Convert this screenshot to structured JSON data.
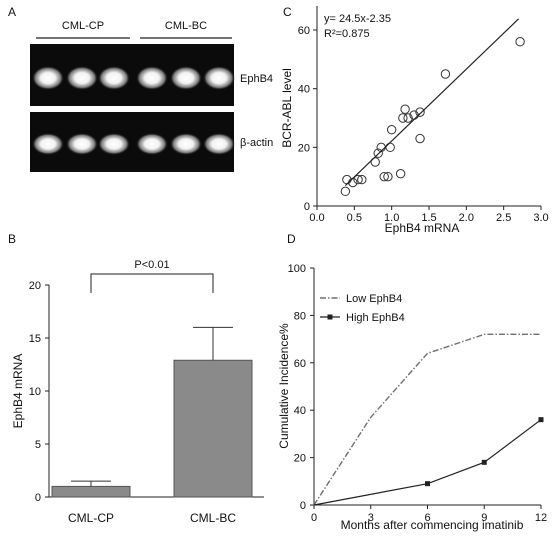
{
  "panels": {
    "A": "A",
    "B": "B",
    "C": "C",
    "D": "D"
  },
  "gel": {
    "groups": [
      "CML-CP",
      "CML-BC"
    ],
    "lanes_per_group": 3,
    "row_labels": [
      "EphB4",
      "β-actin"
    ]
  },
  "chart_data": [
    {
      "panel": "B",
      "type": "bar",
      "title": "",
      "xlabel": "",
      "ylabel": "EphB4 mRNA",
      "categories": [
        "CML-CP",
        "CML-BC"
      ],
      "values": [
        1.0,
        12.9
      ],
      "error": [
        0.5,
        3.1
      ],
      "ylim": [
        0,
        20
      ],
      "yticks": [
        0,
        5,
        10,
        15,
        20
      ],
      "bar_color": "#8a8a8a",
      "annotation": "P<0.01",
      "grid": false
    },
    {
      "panel": "C",
      "type": "scatter",
      "title": "",
      "xlabel": "EphB4 mRNA",
      "ylabel": "BCR-ABL level",
      "xlim": [
        0,
        3.0
      ],
      "ylim": [
        0,
        60
      ],
      "xticks": [
        "0.0",
        "0.5",
        "1.0",
        "1.5",
        "2.0",
        "2.5",
        "3.0"
      ],
      "yticks": [
        0,
        20,
        40,
        60
      ],
      "equation": "y= 24.5x-2.35",
      "r2": "R²=0.875",
      "points": [
        {
          "x": 0.38,
          "y": 5
        },
        {
          "x": 0.4,
          "y": 9
        },
        {
          "x": 0.48,
          "y": 8
        },
        {
          "x": 0.55,
          "y": 9
        },
        {
          "x": 0.6,
          "y": 9
        },
        {
          "x": 0.78,
          "y": 15
        },
        {
          "x": 0.82,
          "y": 18
        },
        {
          "x": 0.86,
          "y": 20
        },
        {
          "x": 0.9,
          "y": 10
        },
        {
          "x": 0.95,
          "y": 10
        },
        {
          "x": 0.98,
          "y": 20
        },
        {
          "x": 1.0,
          "y": 26
        },
        {
          "x": 1.12,
          "y": 11
        },
        {
          "x": 1.15,
          "y": 30
        },
        {
          "x": 1.18,
          "y": 33
        },
        {
          "x": 1.22,
          "y": 30
        },
        {
          "x": 1.3,
          "y": 31
        },
        {
          "x": 1.38,
          "y": 23
        },
        {
          "x": 1.38,
          "y": 32
        },
        {
          "x": 1.72,
          "y": 45
        },
        {
          "x": 2.72,
          "y": 56
        }
      ],
      "fit_line": {
        "x0": 0.38,
        "x1": 2.7
      },
      "fit": {
        "slope": 24.5,
        "intercept": -2.35
      },
      "grid": false
    },
    {
      "panel": "D",
      "type": "line",
      "title": "",
      "xlabel": "Months after commencing imatinib",
      "ylabel": "Cumulative Incidence%",
      "xlim": [
        0,
        12
      ],
      "ylim": [
        0,
        100
      ],
      "xticks": [
        0,
        3,
        6,
        9,
        12
      ],
      "yticks": [
        0,
        20,
        40,
        60,
        80,
        100
      ],
      "legend_position": "top-left",
      "series": [
        {
          "name": "Low EphB4",
          "style": "dash-dot",
          "color": "#6e6e6e",
          "x": [
            0,
            3,
            6,
            9,
            12
          ],
          "y": [
            0,
            37,
            64,
            72,
            72
          ]
        },
        {
          "name": "High EphB4",
          "style": "solid-square",
          "color": "#222222",
          "x": [
            0,
            6,
            9,
            12
          ],
          "y": [
            0,
            9,
            18,
            36
          ]
        }
      ],
      "grid": false
    }
  ]
}
